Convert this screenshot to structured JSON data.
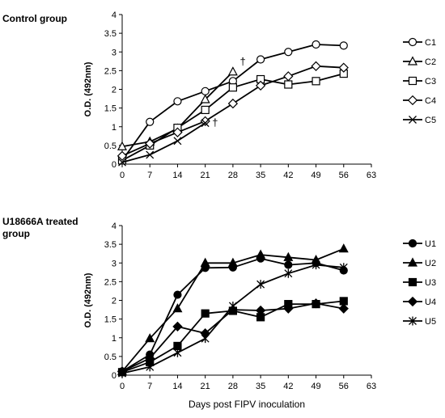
{
  "chart_data": [
    {
      "type": "line",
      "title": "Control group",
      "xlabel": "",
      "ylabel": "O.D. (492nm)",
      "xlim": [
        0,
        63
      ],
      "ylim": [
        0,
        4
      ],
      "xticks": [
        "0",
        "7",
        "14",
        "21",
        "28",
        "35",
        "42",
        "49",
        "56",
        "63"
      ],
      "yticks": [
        "0",
        "0.5",
        "1",
        "1.5",
        "2",
        "2.5",
        "3",
        "3.5",
        "4"
      ],
      "legend_position": "right",
      "grid": false,
      "series": [
        {
          "name": "C1",
          "marker": "circle-open",
          "x": [
            0,
            7,
            14,
            21,
            28,
            35,
            42,
            49,
            56
          ],
          "y": [
            0.1,
            1.13,
            1.68,
            1.95,
            2.22,
            2.8,
            3.0,
            3.2,
            3.17
          ]
        },
        {
          "name": "C2",
          "marker": "triangle-open",
          "x": [
            0,
            7,
            14,
            21,
            28
          ],
          "y": [
            0.47,
            0.6,
            0.95,
            1.73,
            2.47
          ]
        },
        {
          "name": "C3",
          "marker": "square-open",
          "x": [
            0,
            7,
            14,
            21,
            28,
            35,
            42,
            49,
            56
          ],
          "y": [
            0.1,
            0.5,
            0.97,
            1.45,
            2.05,
            2.27,
            2.13,
            2.22,
            2.42
          ]
        },
        {
          "name": "C4",
          "marker": "diamond-open",
          "x": [
            0,
            7,
            14,
            21,
            28,
            35,
            42,
            49,
            56
          ],
          "y": [
            0.22,
            0.55,
            0.85,
            1.15,
            1.62,
            2.1,
            2.35,
            2.62,
            2.58
          ]
        },
        {
          "name": "C5",
          "marker": "x",
          "x": [
            0,
            7,
            14,
            21
          ],
          "y": [
            0.05,
            0.25,
            0.62,
            1.1
          ]
        }
      ],
      "annotations": [
        {
          "text": "†",
          "x": 30.5,
          "y": 2.65
        },
        {
          "text": "†",
          "x": 23.5,
          "y": 1.02
        }
      ]
    },
    {
      "type": "line",
      "title": "U18666A treated group",
      "xlabel": "Days post FIPV inoculation",
      "ylabel": "O.D. (492nm)",
      "xlim": [
        0,
        63
      ],
      "ylim": [
        0,
        4
      ],
      "xticks": [
        "0",
        "7",
        "14",
        "21",
        "28",
        "35",
        "42",
        "49",
        "56",
        "63"
      ],
      "yticks": [
        "0",
        "0.5",
        "1",
        "1.5",
        "2",
        "2.5",
        "3",
        "3.5",
        "4"
      ],
      "legend_position": "right",
      "grid": false,
      "series": [
        {
          "name": "U1",
          "marker": "circle-filled",
          "x": [
            0,
            7,
            14,
            21,
            28,
            35,
            42,
            49,
            56
          ],
          "y": [
            0.1,
            0.55,
            2.15,
            2.87,
            2.88,
            3.12,
            2.95,
            3.0,
            2.8
          ]
        },
        {
          "name": "U2",
          "marker": "triangle-filled",
          "x": [
            0,
            7,
            14,
            21,
            28,
            35,
            42,
            49,
            56
          ],
          "y": [
            0.1,
            0.98,
            1.78,
            3.0,
            3.0,
            3.22,
            3.15,
            3.08,
            3.38
          ]
        },
        {
          "name": "U3",
          "marker": "square-filled",
          "x": [
            0,
            7,
            14,
            21,
            28,
            35,
            42,
            49,
            56
          ],
          "y": [
            0.08,
            0.35,
            0.78,
            1.65,
            1.72,
            1.55,
            1.9,
            1.9,
            1.98
          ]
        },
        {
          "name": "U4",
          "marker": "diamond-filled",
          "x": [
            0,
            7,
            14,
            21,
            28,
            35,
            42,
            49,
            56
          ],
          "y": [
            0.1,
            0.45,
            1.3,
            1.12,
            1.75,
            1.73,
            1.78,
            1.92,
            1.78
          ]
        },
        {
          "name": "U5",
          "marker": "star",
          "x": [
            0,
            7,
            14,
            21,
            28,
            35,
            42,
            49,
            56
          ],
          "y": [
            0.05,
            0.22,
            0.6,
            0.98,
            1.85,
            2.43,
            2.72,
            2.95,
            2.88
          ]
        }
      ],
      "annotations": []
    }
  ]
}
